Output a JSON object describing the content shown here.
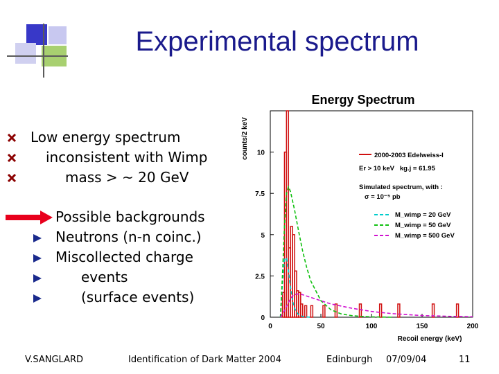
{
  "slide": {
    "title": "Experimental spectrum",
    "bullets": [
      "Low energy spectrum",
      "inconsistent with Wimp",
      "mass > ~ 20 GeV"
    ],
    "arrow_item": "Possible backgrounds",
    "sub_items": [
      "Neutrons (n-n coinc.)",
      "Miscollected charge",
      "events",
      "(surface events)"
    ]
  },
  "footer": {
    "author": "V.SANGLARD",
    "conference": "Identification of Dark Matter 2004",
    "location": "Edinburgh",
    "date": "07/09/04",
    "page": "11"
  },
  "colors": {
    "title": "#1a1a8c",
    "arrow": "#e8001c",
    "bullet_x": "#8b0000"
  },
  "chart_data": {
    "type": "line",
    "title": "Energy Spectrum",
    "xlabel": "Recoil energy (keV)",
    "ylabel": "counts/2 keV",
    "xlim": [
      0,
      200
    ],
    "ylim": [
      0,
      12.5
    ],
    "xticks": [
      "0",
      "50",
      "100",
      "150",
      "200"
    ],
    "yticks": [
      "0",
      "2.5",
      "5",
      "7.5",
      "10"
    ],
    "legend": {
      "data_label": "2000-2003 Edelweiss-I",
      "cut_label": "Er > 10 keV   kg.j = 61.95",
      "sim_label": "Simulated spectrum, with :",
      "sigma_label": "σ = 10⁻⁵ pb"
    },
    "histogram": {
      "name": "2000-2003 Edelweiss-I",
      "color": "#d01010",
      "bins": [
        [
          12,
          14,
          1.5
        ],
        [
          14,
          16,
          10
        ],
        [
          16,
          18,
          12.5
        ],
        [
          18,
          20,
          4.2
        ],
        [
          20,
          22,
          5.5
        ],
        [
          22,
          24,
          5
        ],
        [
          24,
          26,
          2.8
        ],
        [
          26,
          28,
          1.6
        ],
        [
          28,
          30,
          1.5
        ],
        [
          30,
          32,
          0.8
        ],
        [
          34,
          36,
          0.7
        ],
        [
          40,
          42,
          0.7
        ],
        [
          52,
          54,
          0.7
        ],
        [
          64,
          66,
          0.8
        ],
        [
          88,
          90,
          0.8
        ],
        [
          108,
          110,
          0.8
        ],
        [
          126,
          128,
          0.8
        ],
        [
          160,
          162,
          0.8
        ],
        [
          184,
          186,
          0.8
        ]
      ]
    },
    "series": [
      {
        "name": "M_wimp = 20 GeV",
        "color": "#00cccc",
        "x": [
          10,
          12,
          14,
          16,
          18,
          20,
          22,
          24,
          26,
          28,
          30,
          34,
          40
        ],
        "y": [
          0,
          2,
          3.5,
          3.6,
          2.8,
          1.8,
          1.0,
          0.55,
          0.3,
          0.15,
          0.08,
          0.02,
          0
        ]
      },
      {
        "name": "M_wimp = 50 GeV",
        "color": "#10c010",
        "x": [
          10,
          12,
          14,
          16,
          18,
          20,
          24,
          28,
          32,
          36,
          40,
          50,
          60,
          70,
          80,
          90,
          100,
          120
        ],
        "y": [
          0,
          2.5,
          5.5,
          7.5,
          7.9,
          7.6,
          6.5,
          5.2,
          4.0,
          3.0,
          2.2,
          1.0,
          0.45,
          0.2,
          0.1,
          0.05,
          0.02,
          0
        ]
      },
      {
        "name": "M_wimp = 500 GeV",
        "color": "#d010d0",
        "x": [
          10,
          14,
          18,
          22,
          26,
          30,
          40,
          50,
          60,
          80,
          100,
          120,
          150,
          180,
          200
        ],
        "y": [
          0,
          0.4,
          0.9,
          1.3,
          1.4,
          1.4,
          1.2,
          1.0,
          0.8,
          0.55,
          0.35,
          0.22,
          0.1,
          0.05,
          0.03
        ]
      }
    ]
  }
}
